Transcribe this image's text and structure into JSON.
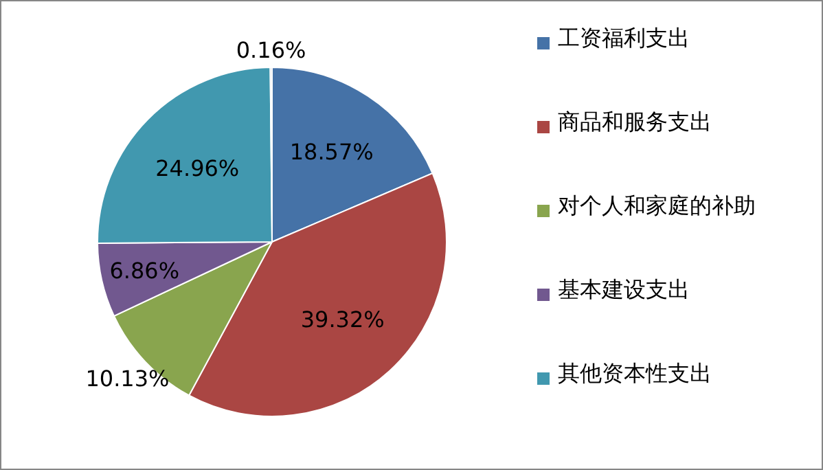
{
  "chart_data": {
    "type": "pie",
    "categories": [
      "工资福利支出",
      "商品和服务支出",
      "对个人和家庭的补助",
      "基本建设支出",
      "其他资本性支出",
      null
    ],
    "values": [
      18.57,
      39.32,
      10.13,
      6.86,
      24.96,
      0.16
    ],
    "colors": [
      "#4572a7",
      "#aa4643",
      "#89a54e",
      "#71588f",
      "#4198af",
      "#b8c0cc"
    ],
    "value_labels": [
      "18.57%",
      "39.32%",
      "10.13%",
      "6.86%",
      "24.96%",
      "0.16%"
    ],
    "legend": "right"
  }
}
